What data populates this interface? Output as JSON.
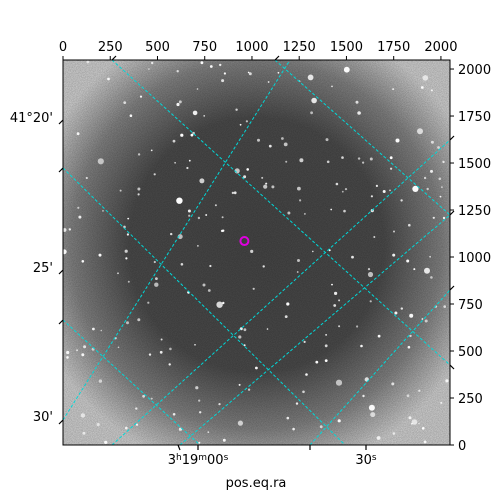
{
  "chart_data": {
    "type": "image",
    "title": "",
    "xlabel": "pos.eq.ra",
    "ylabel": "",
    "pixel_axes": {
      "top_x": {
        "lim": [
          0,
          2048
        ],
        "ticks": [
          0,
          250,
          500,
          750,
          1000,
          1250,
          1500,
          1750,
          2000
        ],
        "labels": [
          "0",
          "250",
          "500",
          "750",
          "1000",
          "1250",
          "1500",
          "1750",
          "2000"
        ]
      },
      "right_y": {
        "lim": [
          0,
          2048
        ],
        "ticks": [
          0,
          250,
          500,
          750,
          1000,
          1250,
          1500,
          1750,
          2000
        ],
        "labels": [
          "0",
          "250",
          "500",
          "750",
          "1000",
          "1250",
          "1500",
          "1750",
          "2000"
        ]
      }
    },
    "world_axes": {
      "bottom_ra": {
        "labels": [
          "3h19m00s",
          "30s"
        ],
        "label_parts": [
          [
            "3",
            "h",
            "19",
            "m",
            "00",
            "s"
          ],
          [
            "30",
            "s"
          ]
        ]
      },
      "left_dec": {
        "labels": [
          "41°20'",
          "25'",
          "30'"
        ]
      }
    },
    "grid": {
      "on": true,
      "color": "#00d8d8",
      "style": "dashed"
    },
    "marker": {
      "type": "circle",
      "color": "#e000e0",
      "x_pix": 960,
      "y_pix": 1085
    },
    "image_colormap": "gray"
  }
}
